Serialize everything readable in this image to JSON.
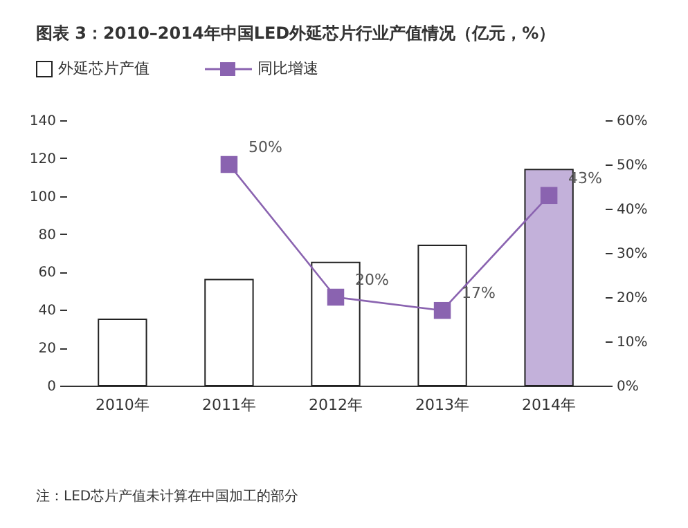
{
  "chart_data": {
    "type": "bar",
    "title": "图表 3：2010–2014年中国LED外延芯片行业产值情况（亿元，%）",
    "categories": [
      "2010年",
      "2011年",
      "2012年",
      "2013年",
      "2014年"
    ],
    "series": [
      {
        "name": "外延芯片产值",
        "color": "#ffffff",
        "colors": [
          "#ffffff",
          "#ffffff",
          "#ffffff",
          "#ffffff",
          "#c3b1da"
        ],
        "values": [
          35,
          56,
          65,
          74,
          114
        ]
      },
      {
        "name": "同比增速",
        "type": "line",
        "axis": "y2",
        "color": "#8a63b0",
        "values": [
          null,
          50,
          20,
          17,
          43
        ],
        "value_labels": [
          null,
          "50%",
          "20%",
          "17%",
          "43%"
        ]
      }
    ],
    "ylim": [
      0,
      140
    ],
    "yticks": [
      0,
      20,
      40,
      60,
      80,
      100,
      120,
      140
    ],
    "y2lim": [
      0,
      60
    ],
    "y2ticks": [
      {
        "value": 0,
        "label": "0%"
      },
      {
        "value": 10,
        "label": "10%"
      },
      {
        "value": 20,
        "label": "20%"
      },
      {
        "value": 30,
        "label": "30%"
      },
      {
        "value": 40,
        "label": "40%"
      },
      {
        "value": 50,
        "label": "50%"
      },
      {
        "value": 60,
        "label": "60%"
      }
    ],
    "marker": "square",
    "legend": "top left",
    "grid": false,
    "annotations": [
      "注：LED芯片产值未计算在中国加工的部分"
    ]
  }
}
